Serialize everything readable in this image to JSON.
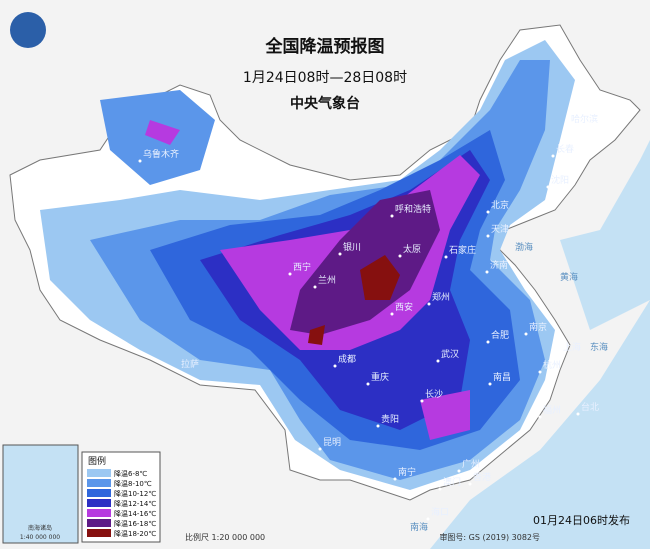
{
  "header": {
    "title": "全国降温预报图",
    "period": "1月24日08时—28日08时",
    "issuer": "中央气象台"
  },
  "legend": {
    "title": "图例",
    "items": [
      {
        "label": "降温6-8℃",
        "color": "#9cc8f2"
      },
      {
        "label": "降温8-10℃",
        "color": "#5b96ea"
      },
      {
        "label": "降温10-12℃",
        "color": "#2f66dc"
      },
      {
        "label": "降温12-14℃",
        "color": "#2c2fc4"
      },
      {
        "label": "降温14-16℃",
        "color": "#b63ae0"
      },
      {
        "label": "降温16-18℃",
        "color": "#5e1a86"
      },
      {
        "label": "降温18-20℃",
        "color": "#86100f"
      }
    ]
  },
  "cities": [
    "乌鲁木齐",
    "哈尔滨",
    "长春",
    "沈阳",
    "呼和浩特",
    "北京",
    "天津",
    "石家庄",
    "太原",
    "银川",
    "兰州",
    "西宁",
    "济南",
    "郑州",
    "西安",
    "南京",
    "合肥",
    "上海",
    "武汉",
    "杭州",
    "成都",
    "拉萨",
    "重庆",
    "长沙",
    "南昌",
    "贵阳",
    "福州",
    "台北",
    "昆明",
    "南宁",
    "广州",
    "澳门",
    "香港",
    "海口"
  ],
  "seas": [
    "渤海",
    "黄海",
    "东海",
    "南海"
  ],
  "inset": {
    "title": "南海诸岛",
    "scale": "1:40 000 000"
  },
  "footer": {
    "scale": "比例尺 1:20 000 000",
    "approval": "审图号: GS (2019) 3082号",
    "issued": "01月24日06时发布"
  }
}
